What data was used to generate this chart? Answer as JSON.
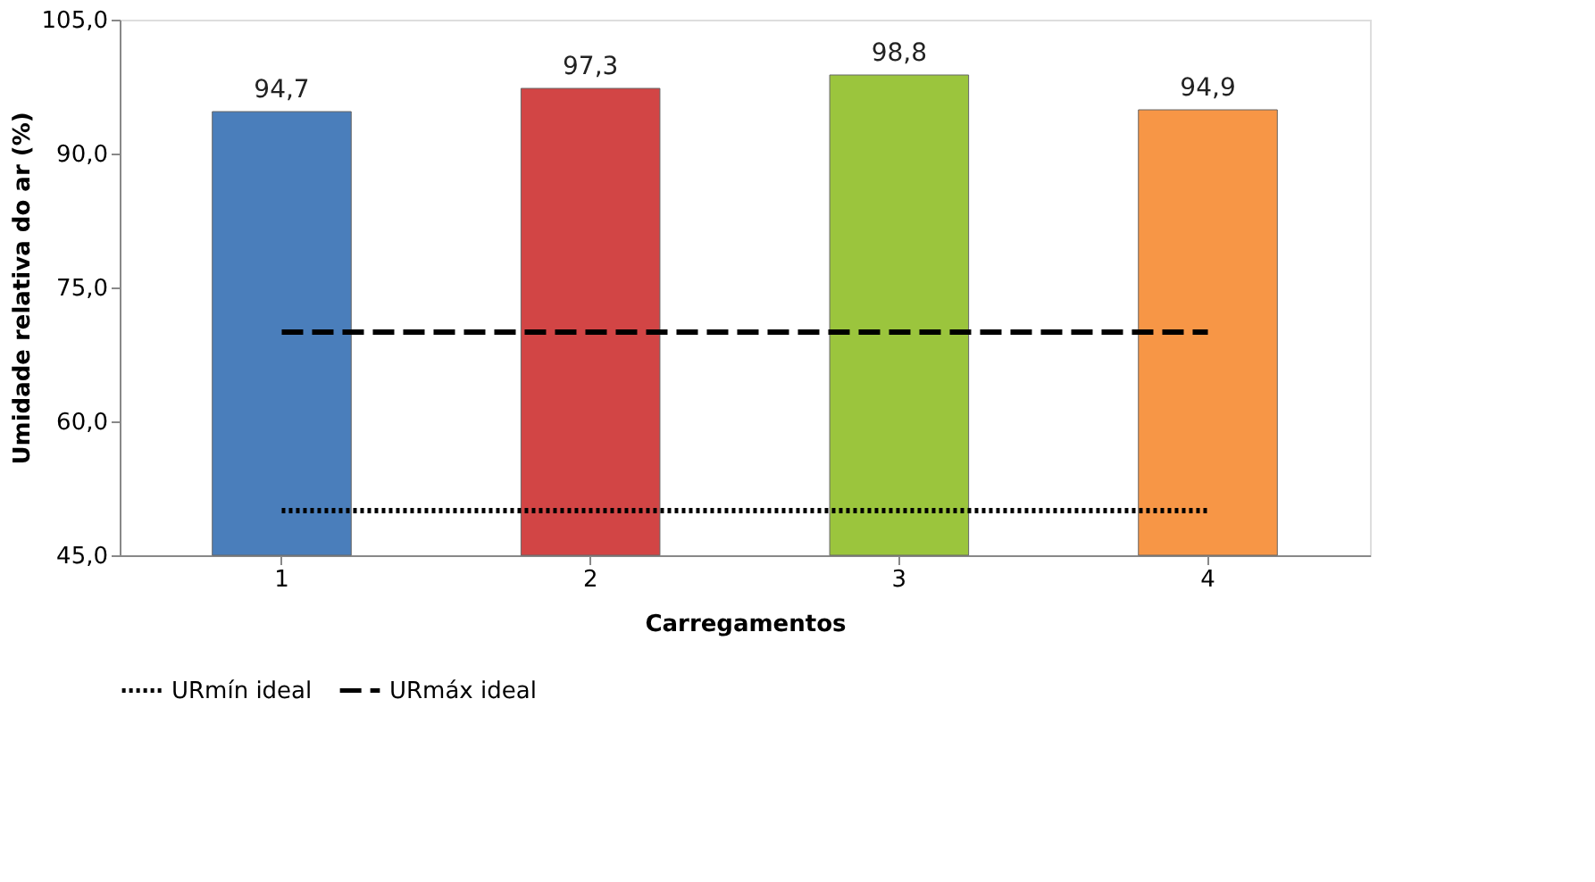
{
  "chart_data": {
    "type": "bar",
    "xlabel": "Carregamentos",
    "ylabel": "Umidade relativa do ar (%)",
    "categories": [
      "1",
      "2",
      "3",
      "4"
    ],
    "ylim": [
      45,
      105
    ],
    "yticks": [
      {
        "value": 45,
        "label": "45,0"
      },
      {
        "value": 60,
        "label": "60,0"
      },
      {
        "value": 75,
        "label": "75,0"
      },
      {
        "value": 90,
        "label": "90,0"
      },
      {
        "value": 105,
        "label": "105,0"
      }
    ],
    "grid": false,
    "legend": "bottom",
    "series": [
      {
        "type": "bar",
        "colors": [
          "#4a7ebb",
          "#d24545",
          "#9bc53d",
          "#f79646"
        ],
        "values": [
          94.7,
          97.3,
          98.8,
          94.9
        ],
        "value_labels": [
          "94,7",
          "97,3",
          "98,8",
          "94,9"
        ]
      },
      {
        "type": "line",
        "name": "URmín ideal",
        "color": "#000000",
        "line_style": "dotted",
        "values": [
          50,
          50,
          50,
          50
        ]
      },
      {
        "type": "line",
        "name": "URmáx ideal",
        "color": "#000000",
        "line_style": "dashed",
        "values": [
          70,
          70,
          70,
          70
        ]
      }
    ]
  }
}
